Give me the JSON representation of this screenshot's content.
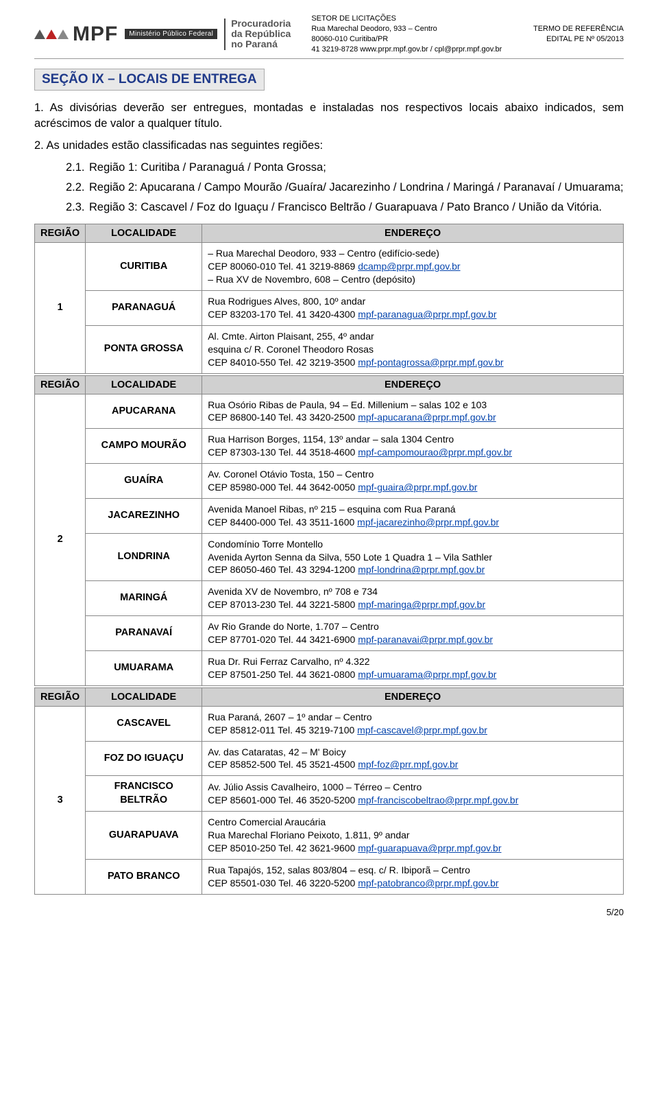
{
  "header": {
    "brand_text": "MPF",
    "brand_subtitle": "Ministério Público Federal",
    "org_line1": "Procuradoria",
    "org_line2": "da República",
    "org_line3": "no Paraná",
    "center_line1": "SETOR DE LICITAÇÕES",
    "center_line2": "Rua Marechal Deodoro, 933 – Centro",
    "center_line3": "80060-010 Curitiba/PR",
    "center_line4": "41 3219-8728 www.prpr.mpf.gov.br / cpl@prpr.mpf.gov.br",
    "right_line1": "TERMO DE REFERÊNCIA",
    "right_line2": "EDITAL PE Nº 05/2013"
  },
  "section_title": "SEÇÃO IX – LOCAIS DE ENTREGA",
  "para1_num": "1.",
  "para1": "As divisórias deverão ser entregues, montadas e instaladas nos respectivos locais abaixo indicados, sem acréscimos de valor a qualquer título.",
  "para2_num": "2.",
  "para2": "As unidades estão classificadas nas seguintes regiões:",
  "li21_num": "2.1.",
  "li21": "Região 1: Curitiba / Paranaguá / Ponta Grossa;",
  "li22_num": "2.2.",
  "li22": "Região 2: Apucarana / Campo Mourão /Guaíra/ Jacarezinho / Londrina / Maringá / Paranavaí / Umuarama;",
  "li23_num": "2.3.",
  "li23": "Região 3: Cascavel / Foz do Iguaçu / Francisco Beltrão / Guarapuava / Pato Branco / União da Vitória.",
  "th_regiao": "REGIÃO",
  "th_local": "LOCALIDADE",
  "th_end": "ENDEREÇO",
  "r1": "1",
  "r2": "2",
  "r3": "3",
  "cur_name": "CURITIBA",
  "cur_a1": "– Rua Marechal Deodoro, 933 – Centro (edifício-sede)",
  "cur_a2a": "CEP 80060-010 Tel. 41 3219-8869 ",
  "cur_a2l": "dcamp@prpr.mpf.gov.br",
  "cur_a3": "– Rua XV de Novembro, 608 – Centro (depósito)",
  "pgua_name": "PARANAGUÁ",
  "pgua_a1": "Rua Rodrigues Alves, 800, 10º andar",
  "pgua_a2a": "CEP 83203-170 Tel. 41 3420-4300 ",
  "pgua_a2l": "mpf-paranagua@prpr.mpf.gov.br",
  "pg_name": "PONTA GROSSA",
  "pg_a1": "Al. Cmte. Airton Plaisant, 255, 4º andar",
  "pg_a2": "esquina c/ R. Coronel Theodoro Rosas",
  "pg_a3a": "CEP 84010-550 Tel. 42 3219-3500 ",
  "pg_a3l": "mpf-pontagrossa@prpr.mpf.gov.br",
  "apu_name": "APUCARANA",
  "apu_a1": "Rua Osório Ribas de Paula, 94 – Ed. Millenium – salas 102 e 103",
  "apu_a2a": "CEP 86800-140 Tel. 43 3420-2500 ",
  "apu_a2l": "mpf-apucarana@prpr.mpf.gov.br",
  "cm_name": "CAMPO MOURÃO",
  "cm_a1": "Rua Harrison Borges, 1154, 13º andar – sala 1304 Centro",
  "cm_a2a": "CEP 87303-130 Tel. 44 3518-4600 ",
  "cm_a2l": "mpf-campomourao@prpr.mpf.gov.br",
  "gua_name": "GUAÍRA",
  "gua_a1": "Av. Coronel Otávio Tosta, 150 – Centro",
  "gua_a2a": "CEP 85980-000 Tel. 44 3642-0050 ",
  "gua_a2l": "mpf-guaira@prpr.mpf.gov.br",
  "jac_name": "JACAREZINHO",
  "jac_a1": "Avenida Manoel Ribas, nº 215 – esquina com Rua Paraná",
  "jac_a2a": "CEP 84400-000 Tel. 43 3511-1600 ",
  "jac_a2l": "mpf-jacarezinho@prpr.mpf.gov.br",
  "lon_name": "LONDRINA",
  "lon_a1": "Condomínio Torre Montello",
  "lon_a2": "Avenida Ayrton Senna da Silva, 550 Lote 1 Quadra 1 – Vila Sathler",
  "lon_a3a": "CEP 86050-460 Tel. 43 3294-1200 ",
  "lon_a3l": "mpf-londrina@prpr.mpf.gov.br",
  "mar_name": "MARINGÁ",
  "mar_a1": "Avenida XV de Novembro, nº 708 e 734",
  "mar_a2a": "CEP 87013-230 Tel. 44 3221-5800 ",
  "mar_a2l": "mpf-maringa@prpr.mpf.gov.br",
  "pvi_name": "PARANAVAÍ",
  "pvi_a1": "Av Rio Grande do Norte, 1.707 – Centro",
  "pvi_a2a": "CEP 87701-020 Tel. 44 3421-6900 ",
  "pvi_a2l": "mpf-paranavai@prpr.mpf.gov.br",
  "umu_name": "UMUARAMA",
  "umu_a1": "Rua Dr. Rui Ferraz Carvalho, nº 4.322",
  "umu_a2a": "CEP 87501-250 Tel. 44 3621-0800 ",
  "umu_a2l": "mpf-umuarama@prpr.mpf.gov.br",
  "cas_name": "CASCAVEL",
  "cas_a1": "Rua Paraná, 2607 – 1º andar – Centro",
  "cas_a2a": "CEP 85812-011 Tel. 45 3219-7100 ",
  "cas_a2l": "mpf-cascavel@prpr.mpf.gov.br",
  "foz_name": "FOZ DO IGUAÇU",
  "foz_a1": "Av. das Cataratas, 42 – M' Boicy",
  "foz_a2a": "CEP 85852-500 Tel. 45 3521-4500 ",
  "foz_a2l": "mpf-foz@prr.mpf.gov.br",
  "fb_name": "FRANCISCO BELTRÃO",
  "fb_a1": "Av. Júlio Assis Cavalheiro, 1000 – Térreo – Centro",
  "fb_a2a": "CEP 85601-000 Tel. 46 3520-5200 ",
  "fb_a2l": "mpf-franciscobeltrao@prpr.mpf.gov.br",
  "gpv_name": "GUARAPUAVA",
  "gpv_a1": "Centro Comercial Araucária",
  "gpv_a2": "Rua Marechal Floriano Peixoto, 1.811, 9º andar",
  "gpv_a3a": "CEP 85010-250 Tel. 42 3621-9600 ",
  "gpv_a3l": "mpf-guarapuava@prpr.mpf.gov.br",
  "pb_name": "PATO BRANCO",
  "pb_a1": "Rua Tapajós, 152, salas 803/804 – esq. c/ R. Ibiporã – Centro",
  "pb_a2a": "CEP 85501-030 Tel. 46 3220-5200 ",
  "pb_a2l": "mpf-patobranco@prpr.mpf.gov.br",
  "page": "5/20"
}
